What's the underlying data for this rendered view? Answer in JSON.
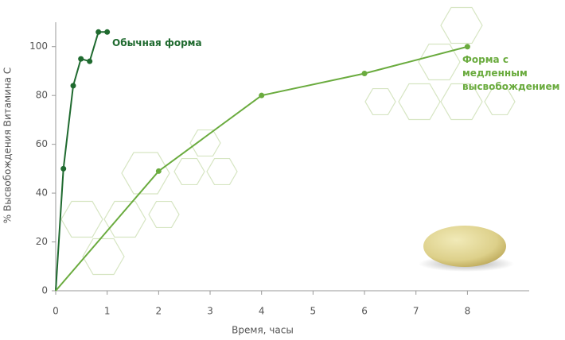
{
  "chart_data": {
    "type": "line",
    "xlabel": "Время, часы",
    "ylabel": "% Высвобождения Витамина С",
    "xlim": [
      0,
      9.2
    ],
    "xticks": [
      0,
      1,
      2,
      3,
      4,
      5,
      6,
      7,
      8
    ],
    "ylim": [
      0,
      110
    ],
    "yticks": [
      0,
      20,
      40,
      60,
      80,
      100
    ],
    "grid": false,
    "series": [
      {
        "name": "Обычная форма",
        "color": "#1f6a2f",
        "x": [
          0,
          0.15,
          0.34,
          0.49,
          0.66,
          0.83,
          1.0
        ],
        "values": [
          0,
          50,
          84,
          95,
          94,
          106,
          106
        ]
      },
      {
        "name": "Форма с медленным высвобождением",
        "color": "#6aab3e",
        "x": [
          0,
          2,
          4,
          6,
          8
        ],
        "values": [
          0,
          49,
          80,
          89,
          100
        ]
      }
    ]
  }
}
